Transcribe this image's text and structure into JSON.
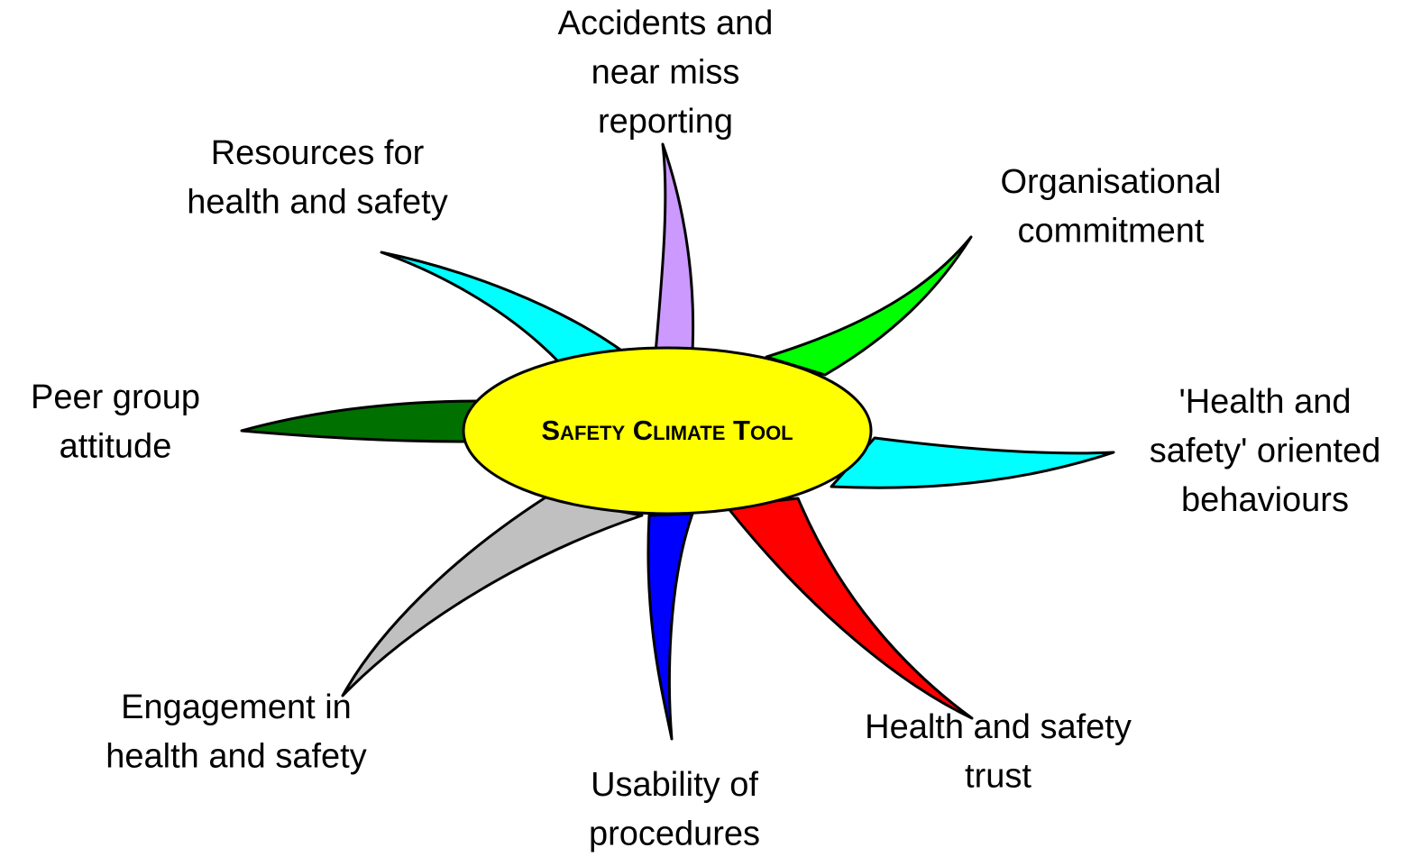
{
  "center": {
    "label": "Safety Climate Tool"
  },
  "nodes": [
    {
      "label": [
        "Accidents and",
        "near miss",
        "reporting"
      ]
    },
    {
      "label": [
        "Organisational",
        "commitment"
      ]
    },
    {
      "label": [
        "'Health and",
        "safety' oriented",
        "behaviours"
      ]
    },
    {
      "label": [
        "Health and safety",
        "trust"
      ]
    },
    {
      "label": [
        "Usability of",
        "procedures"
      ]
    },
    {
      "label": [
        "Engagement in",
        "health and safety"
      ]
    },
    {
      "label": [
        "Peer group",
        "attitude"
      ]
    },
    {
      "label": [
        "Resources for",
        "health and safety"
      ]
    }
  ]
}
